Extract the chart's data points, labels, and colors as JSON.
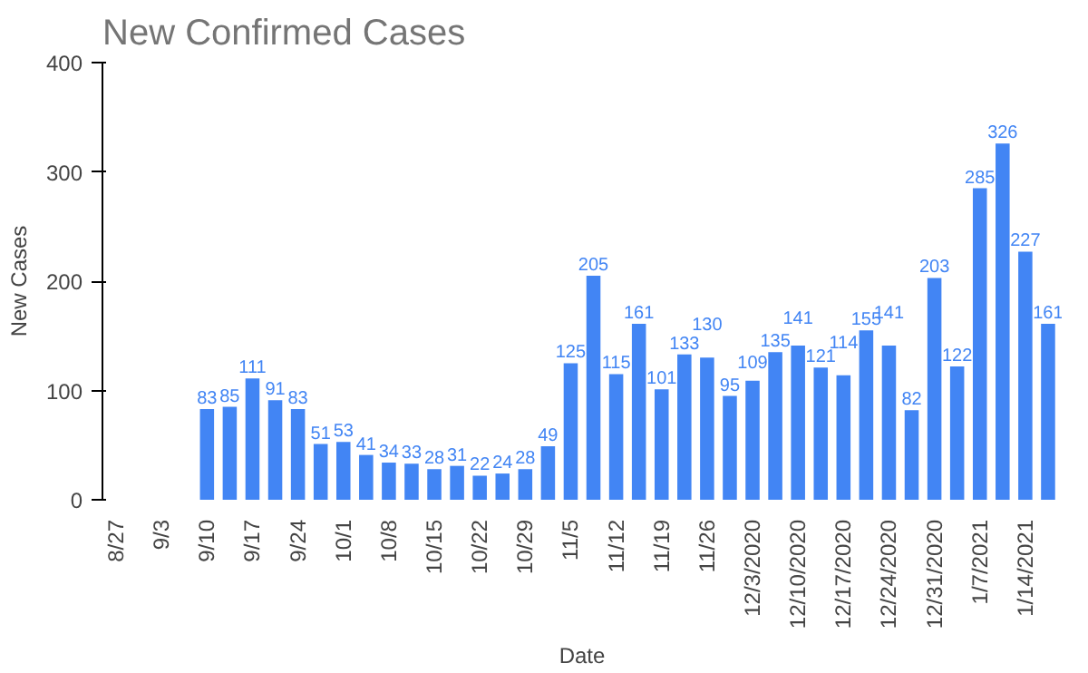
{
  "chart_data": {
    "type": "bar",
    "title": "New Confirmed Cases",
    "xlabel": "Date",
    "ylabel": "New Cases",
    "categories": [
      "8/27",
      null,
      "9/3",
      null,
      "9/10",
      null,
      "9/17",
      null,
      "9/24",
      null,
      "10/1",
      null,
      "10/8",
      null,
      "10/15",
      null,
      "10/22",
      null,
      "10/29",
      null,
      "11/5",
      null,
      "11/12",
      null,
      "11/19",
      null,
      "11/26",
      null,
      "12/3/2020",
      null,
      "12/10/2020",
      null,
      "12/17/2020",
      null,
      "12/24/2020",
      null,
      "12/31/2020",
      null,
      "1/7/2021",
      null,
      "1/14/2021",
      null
    ],
    "values": [
      null,
      null,
      null,
      null,
      83,
      85,
      111,
      91,
      83,
      51,
      53,
      41,
      34,
      33,
      28,
      31,
      22,
      24,
      28,
      49,
      125,
      205,
      115,
      161,
      101,
      133,
      130,
      95,
      109,
      135,
      141,
      121,
      114,
      155,
      141,
      82,
      203,
      122,
      285,
      326,
      227,
      161
    ],
    "color": "#4285f4",
    "ylim": [
      0,
      400
    ],
    "yticks": [
      0,
      100,
      200,
      300,
      400
    ],
    "grid": false,
    "data_labels": true
  }
}
